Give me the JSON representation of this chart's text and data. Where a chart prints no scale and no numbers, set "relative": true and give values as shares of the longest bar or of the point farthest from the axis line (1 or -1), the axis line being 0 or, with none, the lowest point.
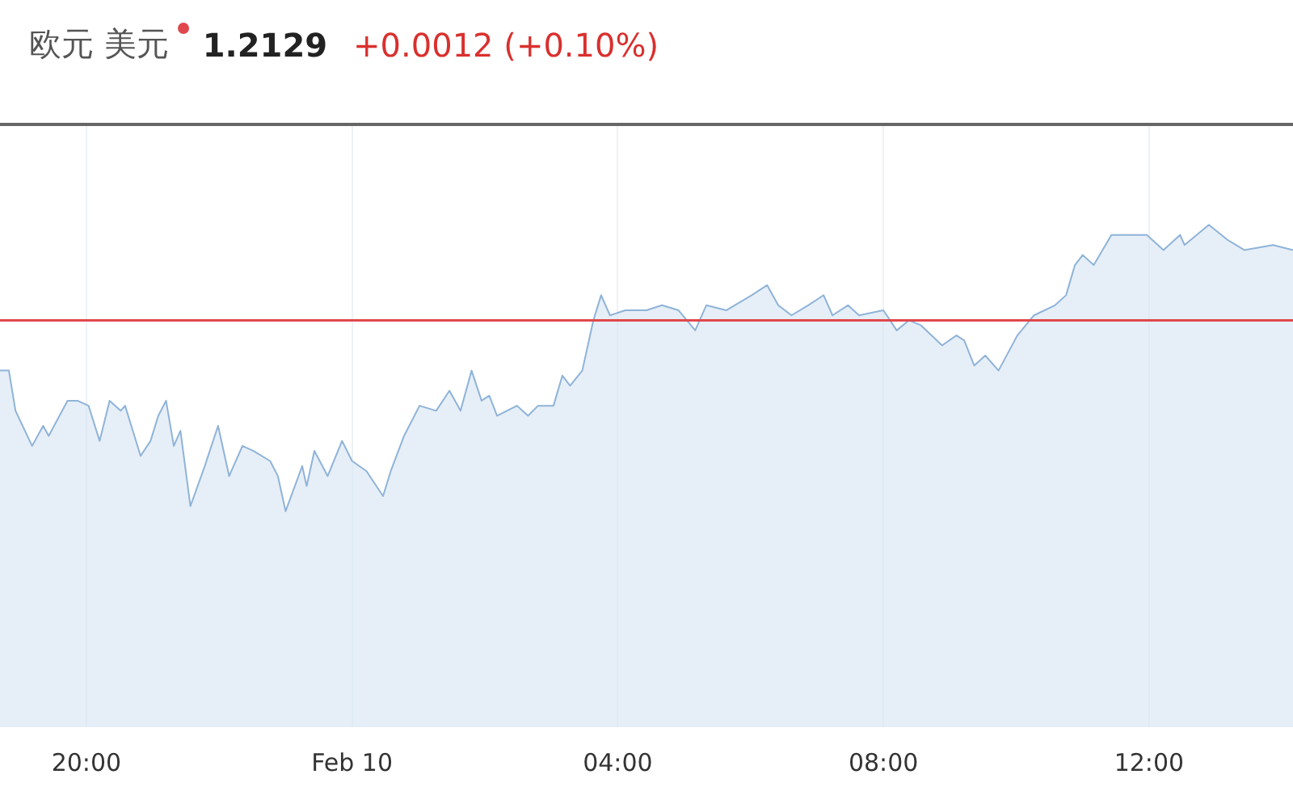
{
  "chart_data": {
    "type": "area",
    "title": "欧元 美元",
    "annotations": [
      "1.2129",
      "+0.0012 (+0.10%)"
    ],
    "relative": true,
    "grid": "x",
    "legend": false,
    "xlim": [
      "--02-09T18:42",
      "--02-10T14:10"
    ],
    "xticks": [
      {
        "value": "--02-09T20:00",
        "label": "20:00"
      },
      {
        "value": "--02-10T00:00",
        "label": "Feb 10"
      },
      {
        "value": "--02-10T04:00",
        "label": "04:00"
      },
      {
        "value": "--02-10T08:00",
        "label": "08:00"
      },
      {
        "value": "--02-10T12:00",
        "label": "12:00"
      }
    ],
    "ref_lines": [
      {
        "axis": "y",
        "value": 0.81,
        "color": "#e0474c"
      }
    ],
    "series": [
      {
        "color": "#8fb3d9",
        "x": [
          "--02-09T18:42",
          "--02-09T18:50",
          "--02-09T18:56",
          "--02-09T19:11",
          "--02-09T19:21",
          "--02-09T19:26",
          "--02-09T19:43",
          "--02-09T19:52",
          "--02-09T20:02",
          "--02-09T20:12",
          "--02-09T20:21",
          "--02-09T20:31",
          "--02-09T20:35",
          "--02-09T20:49",
          "--02-09T20:58",
          "--02-09T21:05",
          "--02-09T21:12",
          "--02-09T21:19",
          "--02-09T21:25",
          "--02-09T21:34",
          "--02-09T21:47",
          "--02-09T21:59",
          "--02-09T22:09",
          "--02-09T22:21",
          "--02-09T22:31",
          "--02-09T22:46",
          "--02-09T22:53",
          "--02-09T23:00",
          "--02-09T23:15",
          "--02-09T23:19",
          "--02-09T23:26",
          "--02-09T23:38",
          "--02-09T23:51",
          "--02-10T00:00",
          "--02-10T00:13",
          "--02-10T00:28",
          "--02-10T00:35",
          "--02-10T00:47",
          "--02-10T01:01",
          "--02-10T01:16",
          "--02-10T01:28",
          "--02-10T01:38",
          "--02-10T01:48",
          "--02-10T01:57",
          "--02-10T02:04",
          "--02-10T02:11",
          "--02-10T02:29",
          "--02-10T02:39",
          "--02-10T02:48",
          "--02-10T03:02",
          "--02-10T03:10",
          "--02-10T03:17",
          "--02-10T03:28",
          "--02-10T03:38",
          "--02-10T03:45",
          "--02-10T03:53",
          "--02-10T04:07",
          "--02-10T04:26",
          "--02-10T04:40",
          "--02-10T04:55",
          "--02-10T05:10",
          "--02-10T05:20",
          "--02-10T05:38",
          "--02-10T06:01",
          "--02-10T06:15",
          "--02-10T06:25",
          "--02-10T06:37",
          "--02-10T06:52",
          "--02-10T07:06",
          "--02-10T07:14",
          "--02-10T07:28",
          "--02-10T07:38",
          "--02-10T08:00",
          "--02-10T08:12",
          "--02-10T08:23",
          "--02-10T08:34",
          "--02-10T08:53",
          "--02-10T09:06",
          "--02-10T09:13",
          "--02-10T09:22",
          "--02-10T09:32",
          "--02-10T09:44",
          "--02-10T10:01",
          "--02-10T10:16",
          "--02-10T10:35",
          "--02-10T10:45",
          "--02-10T10:53",
          "--02-10T11:00",
          "--02-10T11:10",
          "--02-10T11:26",
          "--02-10T11:58",
          "--02-10T12:13",
          "--02-10T12:28",
          "--02-10T12:32",
          "--02-10T12:54",
          "--02-10T13:11",
          "--02-10T13:26",
          "--02-10T13:52",
          "--02-10T14:10"
        ],
        "values": [
          0.71,
          0.71,
          0.63,
          0.56,
          0.6,
          0.58,
          0.65,
          0.65,
          0.64,
          0.57,
          0.65,
          0.63,
          0.64,
          0.54,
          0.57,
          0.62,
          0.65,
          0.56,
          0.59,
          0.44,
          0.52,
          0.6,
          0.5,
          0.56,
          0.55,
          0.53,
          0.5,
          0.43,
          0.52,
          0.48,
          0.55,
          0.5,
          0.57,
          0.53,
          0.51,
          0.46,
          0.51,
          0.58,
          0.64,
          0.63,
          0.67,
          0.63,
          0.71,
          0.65,
          0.66,
          0.62,
          0.64,
          0.62,
          0.64,
          0.64,
          0.7,
          0.68,
          0.71,
          0.81,
          0.86,
          0.82,
          0.83,
          0.83,
          0.84,
          0.83,
          0.79,
          0.84,
          0.83,
          0.86,
          0.88,
          0.84,
          0.82,
          0.84,
          0.86,
          0.82,
          0.84,
          0.82,
          0.83,
          0.79,
          0.81,
          0.8,
          0.76,
          0.78,
          0.77,
          0.72,
          0.74,
          0.71,
          0.78,
          0.82,
          0.84,
          0.86,
          0.92,
          0.94,
          0.92,
          0.98,
          0.98,
          0.95,
          0.98,
          0.96,
          1.0,
          0.97,
          0.95,
          0.96,
          0.95
        ]
      }
    ]
  }
}
